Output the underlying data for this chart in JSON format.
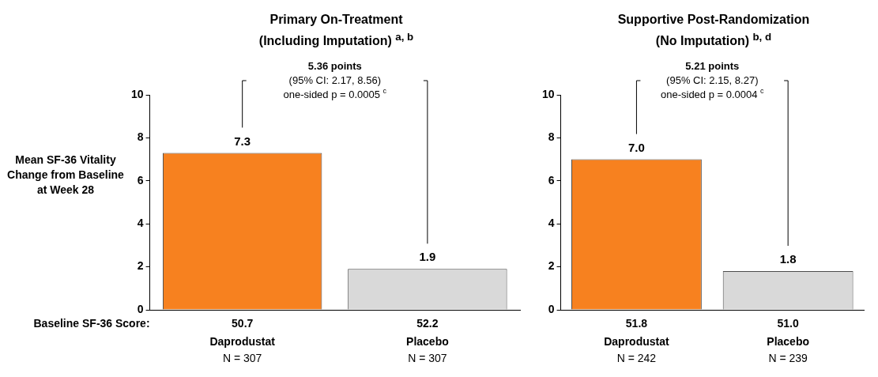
{
  "chart_data": [
    {
      "type": "bar",
      "title": "Primary On-Treatment\n(Including Imputation) $^{a, b}$",
      "ylabel": "Mean SF-36 Vitality Change from Baseline at Week 28",
      "xlabel": "Baseline SF-36 Score:",
      "categories": [
        "Daprodustat",
        "Placebo"
      ],
      "values": [
        7.3,
        1.9
      ],
      "colors": [
        "#f7811f",
        "#d9d9d9"
      ],
      "ylim": [
        0,
        10
      ],
      "yticks": [
        0,
        2,
        4,
        6,
        8,
        10
      ],
      "data_labels": true,
      "grid": false,
      "annotations": [
        "5.36 points",
        "(95% CI: 2.17, 8.56)",
        "one-sided p = 0.0005 $^{c}$",
        "50.7",
        "52.2",
        "N = 307",
        "N = 307"
      ]
    },
    {
      "type": "bar",
      "title": "Supportive Post-Randomization\n(No Imputation) $^{b, d}$",
      "categories": [
        "Daprodustat",
        "Placebo"
      ],
      "values": [
        7.0,
        1.8
      ],
      "value_labels": [
        "7.0",
        "1.8"
      ],
      "colors": [
        "#f7811f",
        "#d9d9d9"
      ],
      "ylim": [
        0,
        10
      ],
      "yticks": [
        0,
        2,
        4,
        6,
        8,
        10
      ],
      "grid": false,
      "annotations": [
        "5.21 points",
        "(95% CI: 2.15, 8.27)",
        "one-sided p = 0.0004 $^{c}$",
        "51.8",
        "51.0",
        "N = 242",
        "N = 239"
      ]
    }
  ]
}
